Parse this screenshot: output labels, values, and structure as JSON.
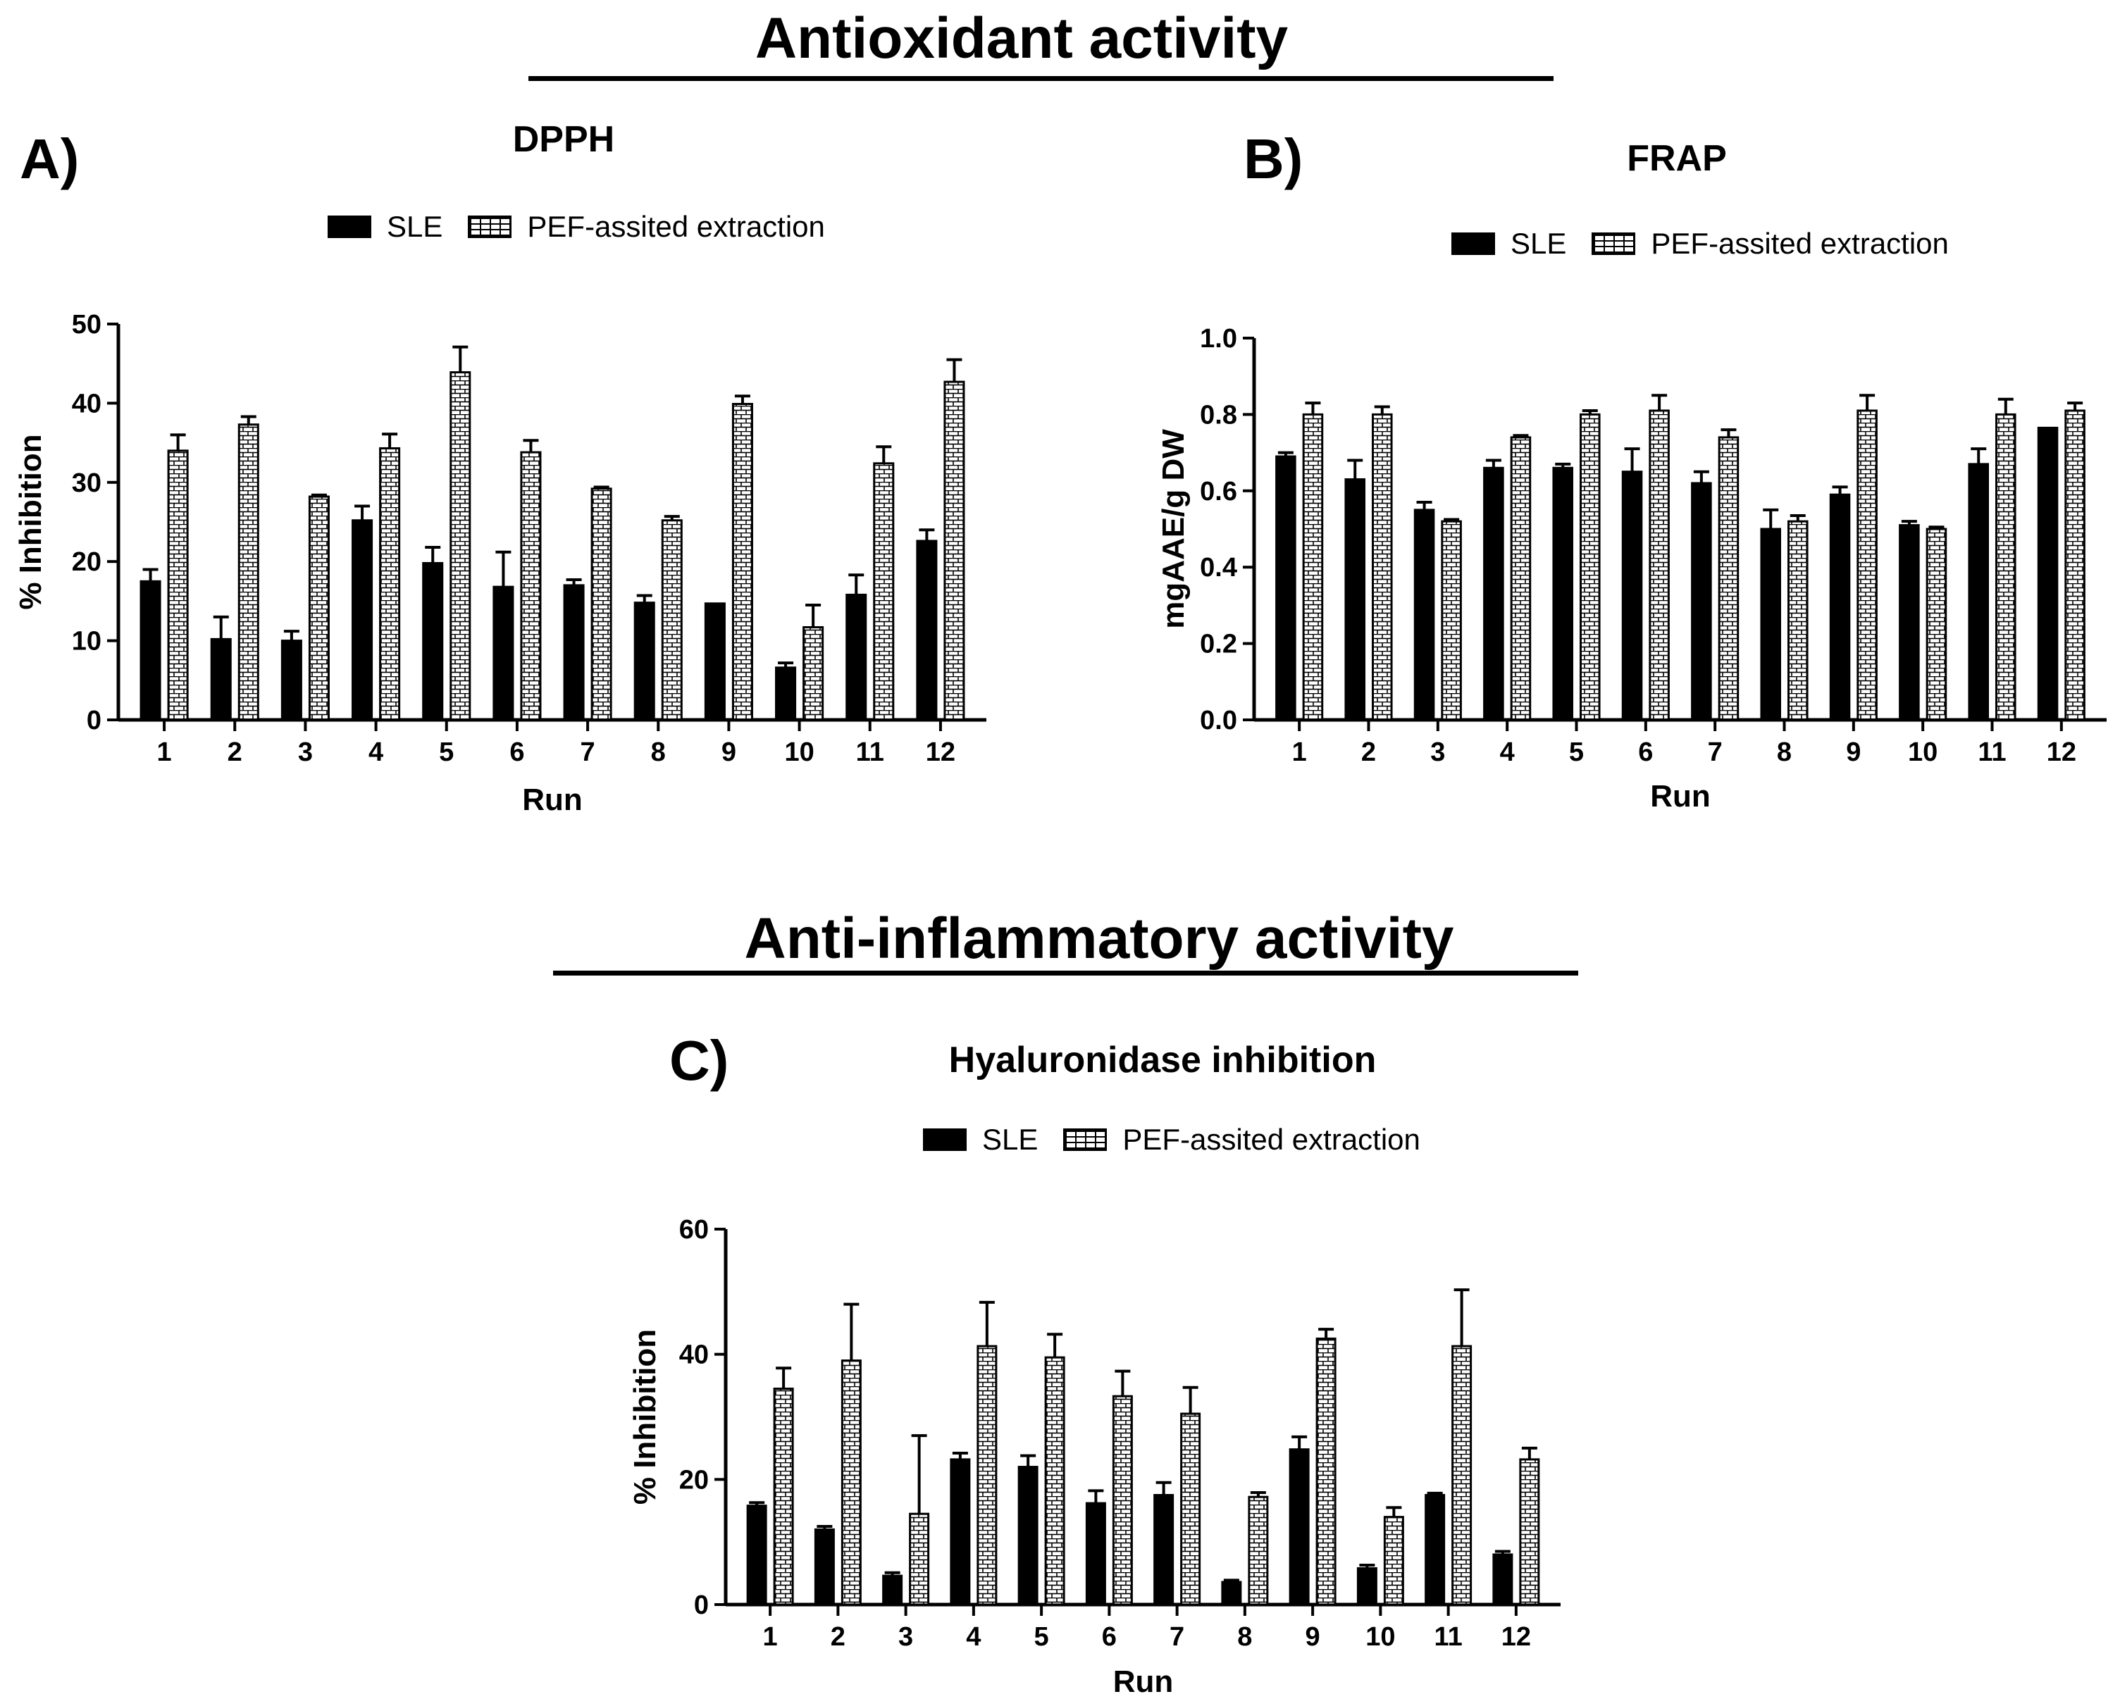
{
  "headers": {
    "antioxidant": "Antioxidant activity",
    "anti_inflammatory": "Anti-inflammatory activity"
  },
  "panels": {
    "a": "A)",
    "b": "B)",
    "c": "C)"
  },
  "colors": {
    "sle": "#000000",
    "pef": "#ffffff",
    "axis": "#000000"
  },
  "chart_data": [
    {
      "id": "dpph",
      "type": "bar",
      "title": "DPPH",
      "xlabel": "Run",
      "ylabel": "% Inhibition",
      "ylim": [
        0,
        50
      ],
      "yticks": [
        "0",
        "10",
        "20",
        "30",
        "40",
        "50"
      ],
      "categories": [
        "1",
        "2",
        "3",
        "4",
        "5",
        "6",
        "7",
        "8",
        "9",
        "10",
        "11",
        "12"
      ],
      "legend": [
        "SLE",
        "PEF-assited extraction"
      ],
      "series": [
        {
          "name": "SLE",
          "pattern": "solid",
          "values": [
            17.5,
            10.2,
            10.0,
            25.2,
            19.8,
            16.8,
            17.0,
            14.8,
            14.7,
            6.6,
            15.8,
            22.6
          ],
          "errors": [
            1.5,
            2.8,
            1.2,
            1.8,
            2.0,
            4.4,
            0.7,
            0.9,
            0.0,
            0.6,
            2.5,
            1.4
          ]
        },
        {
          "name": "PEF-assited extraction",
          "pattern": "brick",
          "values": [
            34.0,
            37.3,
            28.2,
            34.3,
            43.9,
            33.8,
            29.2,
            25.2,
            39.9,
            11.7,
            32.4,
            42.7
          ],
          "errors": [
            2.0,
            1.0,
            0.2,
            1.8,
            3.2,
            1.5,
            0.2,
            0.5,
            1.0,
            2.8,
            2.1,
            2.8
          ]
        }
      ]
    },
    {
      "id": "frap",
      "type": "bar",
      "title": "FRAP",
      "xlabel": "Run",
      "ylabel": "mgAAE/g DW",
      "ylim": [
        0,
        1.0
      ],
      "yticks": [
        "0.0",
        "0.2",
        "0.4",
        "0.6",
        "0.8",
        "1.0"
      ],
      "categories": [
        "1",
        "2",
        "3",
        "4",
        "5",
        "6",
        "7",
        "8",
        "9",
        "10",
        "11",
        "12"
      ],
      "legend": [
        "SLE",
        "PEF-assited extraction"
      ],
      "series": [
        {
          "name": "SLE",
          "pattern": "solid",
          "values": [
            0.69,
            0.63,
            0.55,
            0.66,
            0.66,
            0.65,
            0.62,
            0.5,
            0.59,
            0.51,
            0.67,
            0.765
          ],
          "errors": [
            0.01,
            0.05,
            0.02,
            0.02,
            0.01,
            0.06,
            0.03,
            0.05,
            0.02,
            0.01,
            0.04,
            0.0
          ]
        },
        {
          "name": "PEF-assited extraction",
          "pattern": "brick",
          "values": [
            0.8,
            0.8,
            0.52,
            0.74,
            0.8,
            0.81,
            0.74,
            0.52,
            0.81,
            0.5,
            0.8,
            0.81
          ],
          "errors": [
            0.03,
            0.02,
            0.005,
            0.005,
            0.01,
            0.04,
            0.02,
            0.015,
            0.04,
            0.005,
            0.04,
            0.02
          ]
        }
      ]
    },
    {
      "id": "hyaluronidase",
      "type": "bar",
      "title": "Hyaluronidase inhibition",
      "xlabel": "Run",
      "ylabel": "% Inhibition",
      "ylim": [
        0,
        60
      ],
      "yticks": [
        "0",
        "20",
        "40",
        "60"
      ],
      "categories": [
        "1",
        "2",
        "3",
        "4",
        "5",
        "6",
        "7",
        "8",
        "9",
        "10",
        "11",
        "12"
      ],
      "legend": [
        "SLE",
        "PEF-assited extraction"
      ],
      "series": [
        {
          "name": "SLE",
          "pattern": "solid",
          "values": [
            15.8,
            12.0,
            4.6,
            23.2,
            22.0,
            16.2,
            17.5,
            3.6,
            24.8,
            5.8,
            17.5,
            8.0
          ],
          "errors": [
            0.5,
            0.5,
            0.5,
            1.0,
            1.8,
            2.0,
            2.0,
            0.3,
            2.0,
            0.5,
            0.3,
            0.5
          ]
        },
        {
          "name": "PEF-assited extraction",
          "pattern": "brick",
          "values": [
            34.5,
            39.0,
            14.5,
            41.3,
            39.5,
            33.3,
            30.5,
            17.2,
            42.5,
            14.0,
            41.3,
            23.2
          ],
          "errors": [
            3.3,
            9.0,
            12.5,
            7.0,
            3.7,
            4.0,
            4.2,
            0.7,
            1.5,
            1.5,
            9.0,
            1.8
          ]
        }
      ]
    }
  ]
}
